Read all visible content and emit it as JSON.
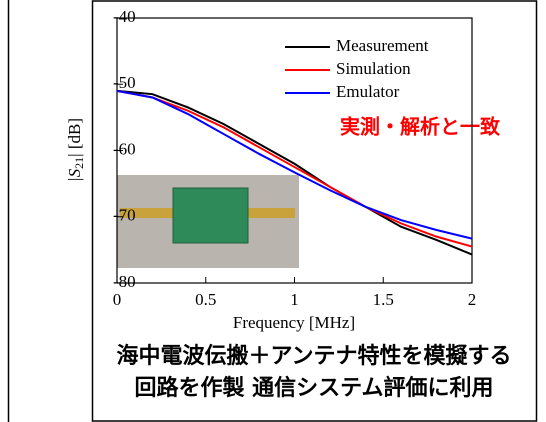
{
  "chart_data": {
    "type": "line",
    "y_label": {
      "prefix": "|S",
      "subscript": "21",
      "suffix": "| [dB]"
    },
    "x_label": "Frequency [MHz]",
    "x": [
      0,
      0.2,
      0.4,
      0.6,
      0.8,
      1.0,
      1.2,
      1.4,
      1.6,
      1.8,
      2.0
    ],
    "series": [
      {
        "name": "Measurement",
        "color": "#000000",
        "values": [
          -51,
          -51.5,
          -53.5,
          -56,
          -59,
          -62,
          -65.5,
          -68.5,
          -71.5,
          -73.5,
          -75.7
        ]
      },
      {
        "name": "Simulation",
        "color": "#ff0000",
        "values": [
          -51,
          -52,
          -54,
          -56.5,
          -59.5,
          -62.5,
          -65.5,
          -68.5,
          -71,
          -73,
          -74.5
        ]
      },
      {
        "name": "Emulator",
        "color": "#0000ff",
        "values": [
          -51,
          -52,
          -54.5,
          -57.5,
          -60.5,
          -63.3,
          -66,
          -68.5,
          -70.5,
          -72,
          -73.3
        ]
      }
    ],
    "xlim": [
      0,
      2
    ],
    "xticks": [
      0,
      0.5,
      1,
      1.5,
      2
    ],
    "ylim": [
      -80,
      -40
    ],
    "yticks": [
      -40,
      -50,
      -60,
      -70,
      -80
    ],
    "grid": false,
    "annotation": {
      "text": "実測・解析と一致",
      "color": "#ff0000"
    }
  },
  "caption": [
    "海中電波伝搬＋アンテナ特性を模擬する",
    "回路を作製  通信システム評価に利用"
  ]
}
